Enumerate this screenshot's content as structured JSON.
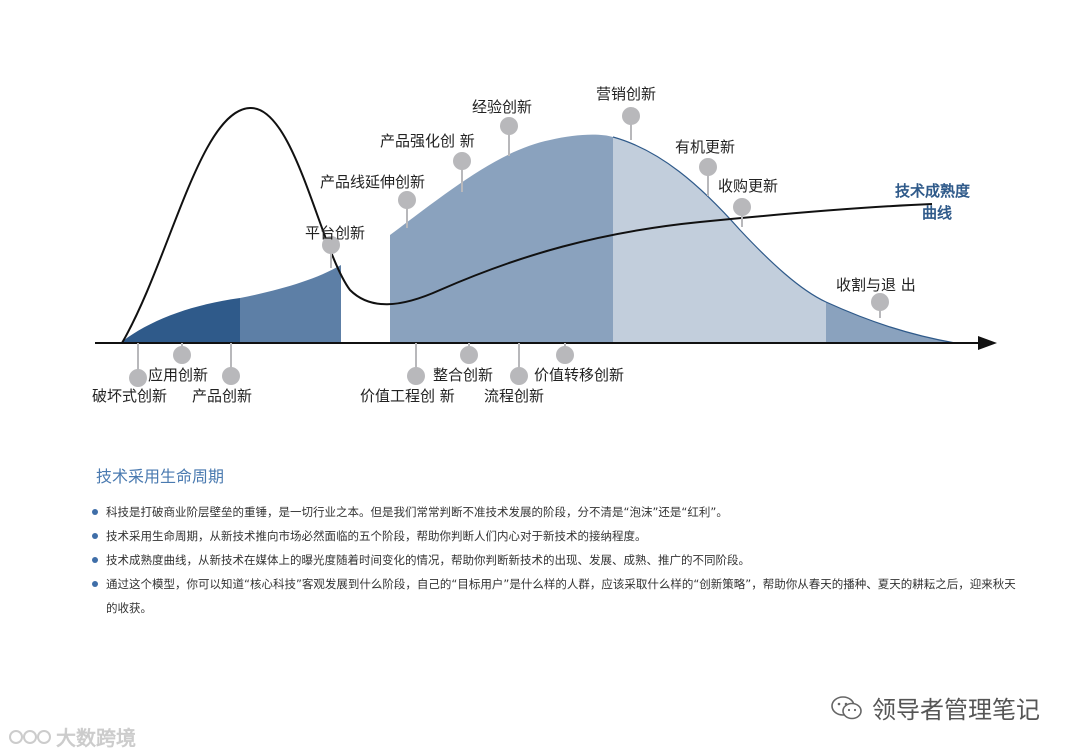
{
  "diagram": {
    "curve_label_line1": "技术成熟度",
    "curve_label_line2": "曲线",
    "upper_labels": [
      {
        "id": "platform",
        "text": "平台创新"
      },
      {
        "id": "line_ext",
        "text": "产品线延伸创新"
      },
      {
        "id": "enhance",
        "text": "产品强化创 新"
      },
      {
        "id": "experience",
        "text": "经验创新"
      },
      {
        "id": "marketing",
        "text": "营销创新"
      },
      {
        "id": "organic",
        "text": "有机更新"
      },
      {
        "id": "acquire",
        "text": "收购更新"
      },
      {
        "id": "exit",
        "text": "收割与退 出"
      }
    ],
    "lower_labels": [
      {
        "id": "disruptive",
        "text": "破坏式创新"
      },
      {
        "id": "application",
        "text": "应用创新"
      },
      {
        "id": "product",
        "text": "产品创新"
      },
      {
        "id": "value_eng",
        "text": "价值工程创 新"
      },
      {
        "id": "integration",
        "text": "整合创新"
      },
      {
        "id": "process",
        "text": "流程创新"
      },
      {
        "id": "value_migration",
        "text": "价值转移创新"
      }
    ],
    "colors": {
      "dark": "#2f5a8a",
      "mid": "#5d7fa6",
      "light": "#8aa2be",
      "pale": "#c2cedc",
      "marker": "#b8b8bb"
    }
  },
  "section": {
    "title": "技术采用生命周期"
  },
  "bullets": [
    "科技是打破商业阶层壁垒的重锤，是一切行业之本。但是我们常常判断不准技术发展的阶段，分不清是“泡沫”还是“红利”。",
    "技术采用生命周期，从新技术推向市场必然面临的五个阶段，帮助你判断人们内心对于新技术的接纳程度。",
    "技术成熟度曲线，从新技术在媒体上的曝光度随着时间变化的情况，帮助你判断新技术的出现、发展、成熟、推广的不同阶段。",
    "通过这个模型，你可以知道“核心科技”客观发展到什么阶段，自己的“目标用户”是什么样的人群，应该采取什么样的“创新策略”，帮助你从春天的播种、夏天的耕耘之后，迎来秋天的收获。"
  ],
  "watermarks": {
    "right": "领导者管理笔记",
    "left": "大数跨境"
  }
}
